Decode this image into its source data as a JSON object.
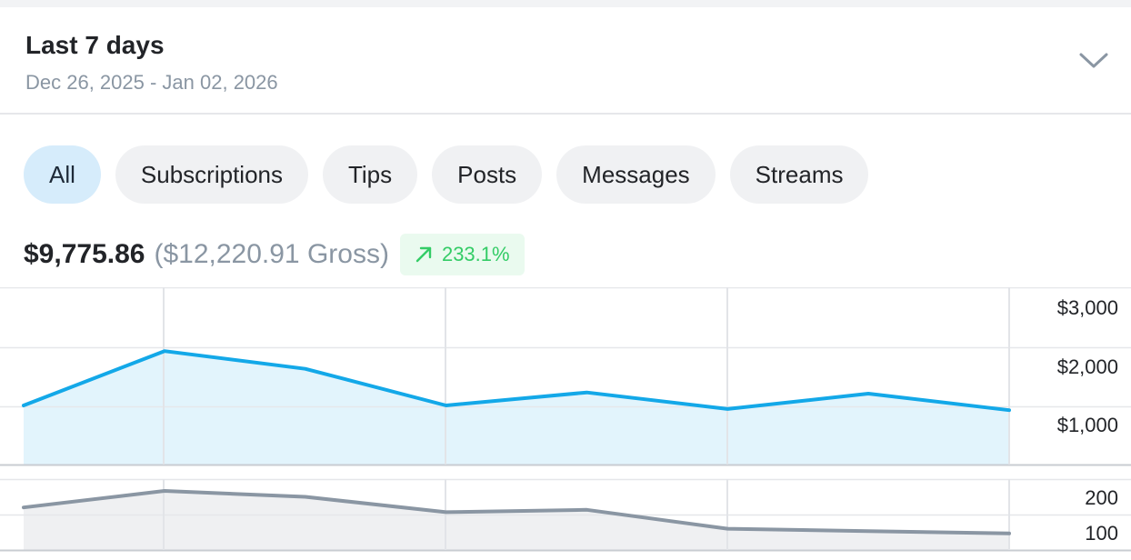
{
  "period": {
    "title": "Last 7 days",
    "range": "Dec 26, 2025 - Jan 02, 2026",
    "toggle_icon": "chevron-down-icon"
  },
  "tabs": [
    {
      "label": "All",
      "active": true
    },
    {
      "label": "Subscriptions",
      "active": false
    },
    {
      "label": "Tips",
      "active": false
    },
    {
      "label": "Posts",
      "active": false
    },
    {
      "label": "Messages",
      "active": false
    },
    {
      "label": "Streams",
      "active": false
    }
  ],
  "summary": {
    "net": "$9,775.86",
    "gross": "($12,220.91 Gross)",
    "change": "233.1%",
    "change_icon": "arrow-up-right-icon"
  },
  "colors": {
    "earnings_line": "#13a8e8",
    "earnings_fill": "#e2f4fc",
    "count_line": "#8a96a3",
    "count_fill": "#eff0f2",
    "positive": "#33cc66"
  },
  "chart_data": [
    {
      "type": "area",
      "x": [
        1,
        2,
        3,
        4,
        5,
        6,
        7,
        8
      ],
      "series": [
        {
          "values": [
            1000,
            1920,
            1620,
            1000,
            1220,
            940,
            1200,
            920
          ]
        }
      ],
      "ylim": [
        0,
        3000
      ],
      "yticks": [
        "$3,000",
        "$2,000",
        "$1,000"
      ],
      "grid": true
    },
    {
      "type": "area",
      "x": [
        1,
        2,
        3,
        4,
        5,
        6,
        7,
        8
      ],
      "series": [
        {
          "values": [
            180,
            250,
            225,
            160,
            170,
            90,
            80,
            70
          ]
        }
      ],
      "ylim": [
        0,
        300
      ],
      "yticks": [
        "200",
        "100"
      ],
      "grid": true
    }
  ]
}
